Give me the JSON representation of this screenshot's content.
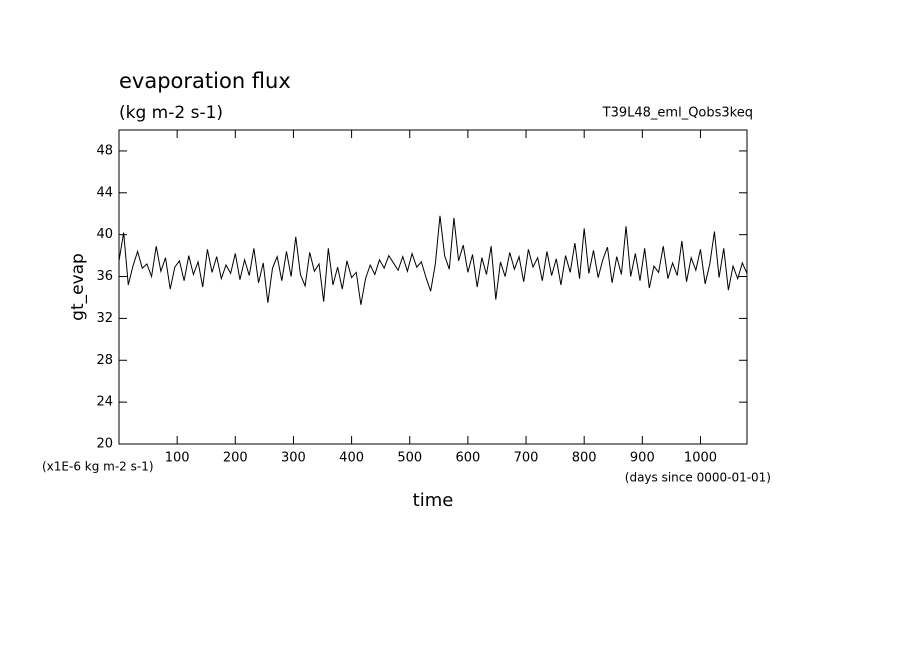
{
  "chart_data": {
    "type": "line",
    "title": "evaporation flux",
    "subtitle": "(kg m-2 s-1)",
    "annotation": "T39L48_eml_Qobs3keq",
    "ylabel": "gt_evap",
    "xlabel": "time",
    "yunit": "(x1E-6 kg m-2 s-1)",
    "xunit": "(days since 0000-01-01)",
    "xlim": [
      0,
      1080
    ],
    "ylim": [
      20,
      50
    ],
    "xticks": [
      100,
      200,
      300,
      400,
      500,
      600,
      700,
      800,
      900,
      1000
    ],
    "yticks": [
      20,
      24,
      28,
      32,
      36,
      40,
      44,
      48
    ],
    "series": [
      {
        "color": "#000000",
        "x": [
          0,
          8,
          16,
          24,
          32,
          40,
          48,
          56,
          64,
          72,
          80,
          88,
          96,
          104,
          112,
          120,
          128,
          136,
          144,
          152,
          160,
          168,
          176,
          184,
          192,
          200,
          208,
          216,
          224,
          232,
          240,
          248,
          256,
          264,
          272,
          280,
          288,
          296,
          304,
          312,
          320,
          328,
          336,
          344,
          352,
          360,
          368,
          376,
          384,
          392,
          400,
          408,
          416,
          424,
          432,
          440,
          448,
          456,
          464,
          472,
          480,
          488,
          496,
          504,
          512,
          520,
          528,
          536,
          544,
          552,
          560,
          568,
          576,
          584,
          592,
          600,
          608,
          616,
          624,
          632,
          640,
          648,
          656,
          664,
          672,
          680,
          688,
          696,
          704,
          712,
          720,
          728,
          736,
          744,
          752,
          760,
          768,
          776,
          784,
          792,
          800,
          808,
          816,
          824,
          832,
          840,
          848,
          856,
          864,
          872,
          880,
          888,
          896,
          904,
          912,
          920,
          928,
          936,
          944,
          952,
          960,
          968,
          976,
          984,
          992,
          1000,
          1008,
          1016,
          1024,
          1032,
          1040,
          1048,
          1056,
          1064,
          1072,
          1080
        ],
        "values": [
          37.5,
          40.2,
          35.2,
          37.0,
          38.4,
          36.8,
          37.2,
          36.0,
          38.9,
          36.5,
          37.8,
          34.8,
          36.9,
          37.5,
          35.6,
          38.0,
          36.2,
          37.4,
          35.0,
          38.6,
          36.4,
          37.9,
          35.8,
          37.1,
          36.3,
          38.2,
          35.7,
          37.6,
          36.1,
          38.7,
          35.4,
          37.3,
          33.5,
          36.8,
          37.9,
          35.6,
          38.4,
          36.0,
          39.8,
          36.2,
          35.1,
          38.3,
          36.5,
          37.2,
          33.6,
          38.7,
          35.2,
          36.9,
          34.8,
          37.5,
          35.9,
          36.4,
          33.3,
          35.8,
          37.1,
          36.2,
          37.6,
          36.8,
          38.0,
          37.3,
          36.6,
          37.9,
          36.5,
          38.2,
          36.9,
          37.4,
          35.9,
          34.6,
          37.2,
          41.8,
          38.0,
          36.7,
          41.6,
          37.5,
          39.0,
          36.4,
          38.1,
          35.0,
          37.8,
          36.2,
          38.9,
          33.8,
          37.4,
          36.0,
          38.3,
          36.7,
          37.9,
          35.5,
          38.6,
          36.9,
          37.8,
          35.6,
          38.4,
          36.1,
          37.7,
          35.2,
          38.0,
          36.4,
          39.2,
          35.8,
          40.6,
          36.3,
          38.5,
          35.9,
          37.6,
          38.8,
          35.4,
          37.9,
          36.2,
          40.8,
          36.0,
          38.2,
          35.6,
          38.7,
          34.9,
          37.0,
          36.4,
          38.9,
          35.8,
          37.3,
          36.1,
          39.4,
          35.5,
          37.8,
          36.6,
          38.6,
          35.3,
          37.2,
          40.3,
          35.9,
          38.7,
          34.7,
          37.0,
          35.8,
          37.3,
          36.3
        ]
      }
    ]
  }
}
